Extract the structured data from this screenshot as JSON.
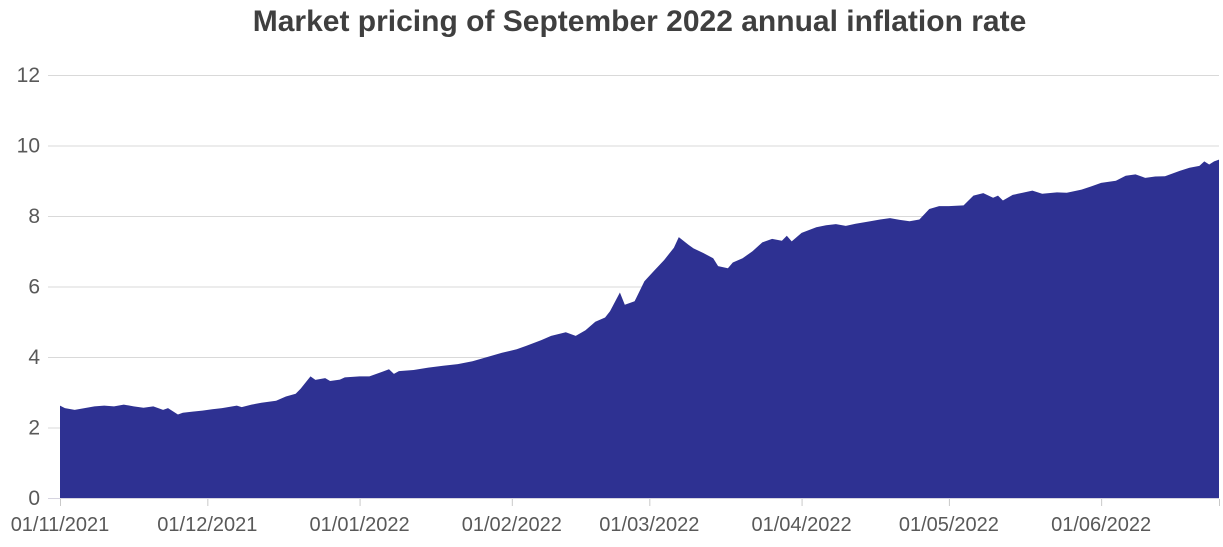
{
  "chart_data": {
    "type": "area",
    "title": "Market pricing of September 2022 annual inflation rate",
    "xlabel": "",
    "ylabel": "",
    "ylim": [
      0,
      12
    ],
    "y_ticks": [
      0,
      2,
      4,
      6,
      8,
      10,
      12
    ],
    "grid": true,
    "legend": false,
    "x_start": "2021-11-01",
    "x_end": "2022-06-25",
    "x_ticks": [
      {
        "label": "01/11/2021",
        "date": "2021-11-01"
      },
      {
        "label": "01/12/2021",
        "date": "2021-12-01"
      },
      {
        "label": "01/01/2022",
        "date": "2022-01-01"
      },
      {
        "label": "01/02/2022",
        "date": "2022-02-01"
      },
      {
        "label": "01/03/2022",
        "date": "2022-03-01"
      },
      {
        "label": "01/04/2022",
        "date": "2022-04-01"
      },
      {
        "label": "01/05/2022",
        "date": "2022-05-01"
      },
      {
        "label": "01/06/2022",
        "date": "2022-06-01"
      }
    ],
    "colors": {
      "area": "#2E3192",
      "grid": "#D9D9D9",
      "baseline": "#D6D4E0",
      "tick": "#C9C9C9",
      "axis_text": "#595959",
      "title_text": "#3F3F3F"
    },
    "points": [
      [
        "2021-11-01",
        2.62
      ],
      [
        "2021-11-02",
        2.55
      ],
      [
        "2021-11-04",
        2.5
      ],
      [
        "2021-11-06",
        2.55
      ],
      [
        "2021-11-08",
        2.6
      ],
      [
        "2021-11-10",
        2.62
      ],
      [
        "2021-11-12",
        2.6
      ],
      [
        "2021-11-14",
        2.65
      ],
      [
        "2021-11-16",
        2.6
      ],
      [
        "2021-11-18",
        2.56
      ],
      [
        "2021-11-20",
        2.6
      ],
      [
        "2021-11-22",
        2.5
      ],
      [
        "2021-11-23",
        2.55
      ],
      [
        "2021-11-25",
        2.37
      ],
      [
        "2021-11-26",
        2.42
      ],
      [
        "2021-11-28",
        2.45
      ],
      [
        "2021-11-30",
        2.48
      ],
      [
        "2021-12-02",
        2.52
      ],
      [
        "2021-12-04",
        2.55
      ],
      [
        "2021-12-07",
        2.62
      ],
      [
        "2021-12-08",
        2.58
      ],
      [
        "2021-12-10",
        2.65
      ],
      [
        "2021-12-12",
        2.7
      ],
      [
        "2021-12-15",
        2.76
      ],
      [
        "2021-12-17",
        2.88
      ],
      [
        "2021-12-19",
        2.96
      ],
      [
        "2021-12-20",
        3.1
      ],
      [
        "2021-12-22",
        3.45
      ],
      [
        "2021-12-23",
        3.35
      ],
      [
        "2021-12-25",
        3.4
      ],
      [
        "2021-12-26",
        3.32
      ],
      [
        "2021-12-28",
        3.36
      ],
      [
        "2021-12-29",
        3.42
      ],
      [
        "2022-01-01",
        3.45
      ],
      [
        "2022-01-03",
        3.45
      ],
      [
        "2022-01-05",
        3.55
      ],
      [
        "2022-01-07",
        3.65
      ],
      [
        "2022-01-08",
        3.52
      ],
      [
        "2022-01-09",
        3.6
      ],
      [
        "2022-01-12",
        3.63
      ],
      [
        "2022-01-15",
        3.7
      ],
      [
        "2022-01-18",
        3.75
      ],
      [
        "2022-01-21",
        3.8
      ],
      [
        "2022-01-24",
        3.88
      ],
      [
        "2022-01-27",
        4.0
      ],
      [
        "2022-01-30",
        4.12
      ],
      [
        "2022-02-02",
        4.22
      ],
      [
        "2022-02-04",
        4.32
      ],
      [
        "2022-02-07",
        4.48
      ],
      [
        "2022-02-09",
        4.6
      ],
      [
        "2022-02-12",
        4.7
      ],
      [
        "2022-02-14",
        4.6
      ],
      [
        "2022-02-16",
        4.76
      ],
      [
        "2022-02-18",
        5.0
      ],
      [
        "2022-02-20",
        5.12
      ],
      [
        "2022-02-21",
        5.3
      ],
      [
        "2022-02-23",
        5.83
      ],
      [
        "2022-02-24",
        5.48
      ],
      [
        "2022-02-26",
        5.58
      ],
      [
        "2022-02-28",
        6.15
      ],
      [
        "2022-03-02",
        6.45
      ],
      [
        "2022-03-04",
        6.75
      ],
      [
        "2022-03-06",
        7.1
      ],
      [
        "2022-03-07",
        7.4
      ],
      [
        "2022-03-09",
        7.18
      ],
      [
        "2022-03-10",
        7.08
      ],
      [
        "2022-03-12",
        6.95
      ],
      [
        "2022-03-14",
        6.8
      ],
      [
        "2022-03-15",
        6.58
      ],
      [
        "2022-03-17",
        6.52
      ],
      [
        "2022-03-18",
        6.68
      ],
      [
        "2022-03-20",
        6.8
      ],
      [
        "2022-03-22",
        7.0
      ],
      [
        "2022-03-24",
        7.25
      ],
      [
        "2022-03-26",
        7.35
      ],
      [
        "2022-03-28",
        7.3
      ],
      [
        "2022-03-29",
        7.44
      ],
      [
        "2022-03-30",
        7.28
      ],
      [
        "2022-04-01",
        7.52
      ],
      [
        "2022-04-04",
        7.68
      ],
      [
        "2022-04-06",
        7.74
      ],
      [
        "2022-04-08",
        7.77
      ],
      [
        "2022-04-10",
        7.72
      ],
      [
        "2022-04-12",
        7.78
      ],
      [
        "2022-04-15",
        7.85
      ],
      [
        "2022-04-17",
        7.9
      ],
      [
        "2022-04-19",
        7.94
      ],
      [
        "2022-04-21",
        7.89
      ],
      [
        "2022-04-23",
        7.85
      ],
      [
        "2022-04-25",
        7.9
      ],
      [
        "2022-04-27",
        8.2
      ],
      [
        "2022-04-29",
        8.28
      ],
      [
        "2022-05-01",
        8.28
      ],
      [
        "2022-05-04",
        8.3
      ],
      [
        "2022-05-06",
        8.58
      ],
      [
        "2022-05-08",
        8.65
      ],
      [
        "2022-05-10",
        8.52
      ],
      [
        "2022-05-11",
        8.58
      ],
      [
        "2022-05-12",
        8.44
      ],
      [
        "2022-05-14",
        8.6
      ],
      [
        "2022-05-16",
        8.66
      ],
      [
        "2022-05-18",
        8.72
      ],
      [
        "2022-05-20",
        8.63
      ],
      [
        "2022-05-23",
        8.67
      ],
      [
        "2022-05-25",
        8.66
      ],
      [
        "2022-05-28",
        8.75
      ],
      [
        "2022-05-30",
        8.84
      ],
      [
        "2022-06-01",
        8.94
      ],
      [
        "2022-06-04",
        9.0
      ],
      [
        "2022-06-06",
        9.14
      ],
      [
        "2022-06-08",
        9.18
      ],
      [
        "2022-06-10",
        9.08
      ],
      [
        "2022-06-12",
        9.12
      ],
      [
        "2022-06-14",
        9.13
      ],
      [
        "2022-06-17",
        9.28
      ],
      [
        "2022-06-19",
        9.37
      ],
      [
        "2022-06-21",
        9.42
      ],
      [
        "2022-06-22",
        9.55
      ],
      [
        "2022-06-23",
        9.46
      ],
      [
        "2022-06-24",
        9.55
      ],
      [
        "2022-06-25",
        9.6
      ]
    ]
  }
}
